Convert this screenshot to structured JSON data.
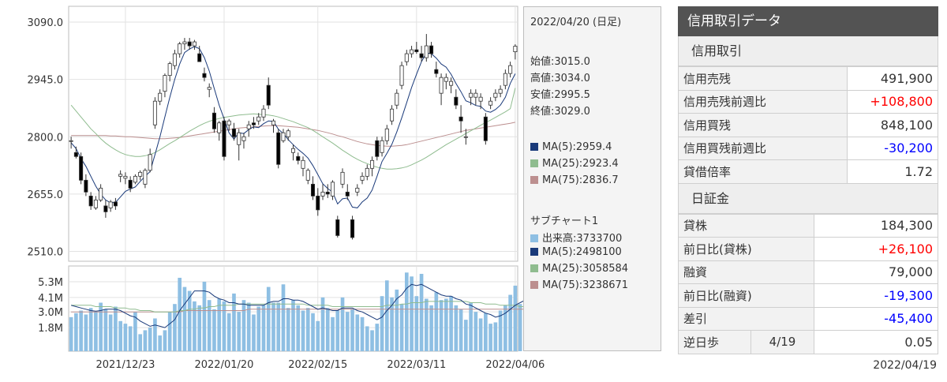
{
  "chart_data": {
    "type": "candlestick",
    "price": {
      "yticks": [
        3090.0,
        2945.0,
        2800.0,
        2655.0,
        2510.0
      ],
      "ylim": [
        2485,
        3130
      ],
      "candles": [
        [
          2790,
          2800,
          2770,
          2790
        ],
        [
          2760,
          2775,
          2745,
          2750
        ],
        [
          2750,
          2760,
          2680,
          2690
        ],
        [
          2690,
          2705,
          2650,
          2660
        ],
        [
          2650,
          2660,
          2615,
          2625
        ],
        [
          2620,
          2650,
          2615,
          2640
        ],
        [
          2640,
          2680,
          2635,
          2670
        ],
        [
          2625,
          2640,
          2595,
          2610
        ],
        [
          2620,
          2640,
          2610,
          2635
        ],
        [
          2635,
          2645,
          2615,
          2625
        ],
        [
          2700,
          2715,
          2685,
          2705
        ],
        [
          2695,
          2710,
          2680,
          2700
        ],
        [
          2690,
          2700,
          2660,
          2670
        ],
        [
          2685,
          2705,
          2680,
          2700
        ],
        [
          2700,
          2715,
          2690,
          2710
        ],
        [
          2680,
          2720,
          2670,
          2715
        ],
        [
          2715,
          2770,
          2710,
          2755
        ],
        [
          2830,
          2900,
          2820,
          2890
        ],
        [
          2890,
          2920,
          2880,
          2910
        ],
        [
          2915,
          2960,
          2900,
          2955
        ],
        [
          2955,
          2990,
          2940,
          2985
        ],
        [
          2980,
          3020,
          2970,
          3010
        ],
        [
          3010,
          3040,
          3000,
          3035
        ],
        [
          3035,
          3050,
          3020,
          3040
        ],
        [
          3040,
          3050,
          3020,
          3030
        ],
        [
          3030,
          3045,
          3020,
          3040
        ],
        [
          3010,
          3030,
          2990,
          2990
        ],
        [
          2960,
          2975,
          2940,
          2950
        ],
        [
          2920,
          2935,
          2900,
          2925
        ],
        [
          2860,
          2875,
          2810,
          2820
        ],
        [
          2810,
          2840,
          2790,
          2835
        ],
        [
          2840,
          2850,
          2740,
          2750
        ],
        [
          2830,
          2845,
          2815,
          2840
        ],
        [
          2820,
          2835,
          2790,
          2800
        ],
        [
          2780,
          2820,
          2740,
          2810
        ],
        [
          2790,
          2810,
          2770,
          2800
        ],
        [
          2820,
          2840,
          2800,
          2830
        ],
        [
          2835,
          2850,
          2820,
          2830
        ],
        [
          2840,
          2860,
          2830,
          2850
        ],
        [
          2850,
          2880,
          2840,
          2870
        ],
        [
          2930,
          2950,
          2870,
          2880
        ],
        [
          2830,
          2845,
          2810,
          2840
        ],
        [
          2810,
          2820,
          2720,
          2730
        ],
        [
          2790,
          2820,
          2785,
          2810
        ],
        [
          2800,
          2820,
          2790,
          2815
        ],
        [
          2760,
          2780,
          2740,
          2770
        ],
        [
          2750,
          2760,
          2730,
          2740
        ],
        [
          2720,
          2750,
          2700,
          2740
        ],
        [
          2690,
          2720,
          2680,
          2715
        ],
        [
          2680,
          2700,
          2640,
          2650
        ],
        [
          2650,
          2670,
          2600,
          2615
        ],
        [
          2650,
          2680,
          2640,
          2660
        ],
        [
          2660,
          2680,
          2645,
          2655
        ],
        [
          2650,
          2690,
          2640,
          2685
        ],
        [
          2590,
          2600,
          2545,
          2550
        ],
        [
          2680,
          2720,
          2670,
          2710
        ],
        [
          2660,
          2680,
          2640,
          2650
        ],
        [
          2590,
          2600,
          2540,
          2545
        ],
        [
          2660,
          2680,
          2650,
          2670
        ],
        [
          2690,
          2710,
          2680,
          2700
        ],
        [
          2700,
          2730,
          2690,
          2720
        ],
        [
          2720,
          2750,
          2700,
          2740
        ],
        [
          2790,
          2800,
          2740,
          2750
        ],
        [
          2760,
          2800,
          2750,
          2790
        ],
        [
          2790,
          2830,
          2780,
          2820
        ],
        [
          2840,
          2880,
          2830,
          2870
        ],
        [
          2880,
          2920,
          2870,
          2910
        ],
        [
          2930,
          2990,
          2920,
          2980
        ],
        [
          2990,
          3020,
          2980,
          3010
        ],
        [
          3010,
          3030,
          3000,
          3020
        ],
        [
          3020,
          3040,
          3010,
          3015
        ],
        [
          3010,
          3030,
          2990,
          3000
        ],
        [
          3000,
          3060,
          2990,
          3030
        ],
        [
          3030,
          3040,
          3000,
          3010
        ],
        [
          2970,
          2990,
          2950,
          2960
        ],
        [
          2910,
          2960,
          2880,
          2950
        ],
        [
          2940,
          2960,
          2920,
          2950
        ],
        [
          2930,
          2950,
          2910,
          2940
        ],
        [
          2900,
          2920,
          2870,
          2880
        ],
        [
          2850,
          2880,
          2810,
          2840
        ],
        [
          2800,
          2820,
          2780,
          2800
        ],
        [
          2900,
          2920,
          2880,
          2910
        ],
        [
          2900,
          2920,
          2880,
          2910
        ],
        [
          2890,
          2910,
          2870,
          2900
        ],
        [
          2850,
          2860,
          2780,
          2790
        ],
        [
          2880,
          2900,
          2870,
          2890
        ],
        [
          2900,
          2920,
          2890,
          2910
        ],
        [
          2910,
          2930,
          2900,
          2920
        ],
        [
          2930,
          2970,
          2920,
          2960
        ],
        [
          2960,
          2990,
          2950,
          2980
        ],
        [
          3015,
          3034,
          2995.5,
          3029
        ]
      ],
      "ma5": [
        2785,
        2770,
        2745,
        2725,
        2700,
        2675,
        2655,
        2640,
        2633,
        2634,
        2648,
        2662,
        2668,
        2673,
        2687,
        2700,
        2712,
        2755,
        2800,
        2850,
        2900,
        2945,
        2984,
        3013,
        3022,
        3028,
        3023,
        3000,
        2966,
        2922,
        2880,
        2845,
        2810,
        2794,
        2810,
        2808,
        2818,
        2825,
        2823,
        2833,
        2840,
        2839,
        2819,
        2808,
        2793,
        2780,
        2768,
        2758,
        2746,
        2727,
        2704,
        2681,
        2669,
        2660,
        2630,
        2643,
        2645,
        2622,
        2620,
        2635,
        2645,
        2665,
        2700,
        2737,
        2758,
        2781,
        2812,
        2848,
        2886,
        2925,
        2958,
        2990,
        3012,
        3010,
        2999,
        2984,
        2976,
        2958,
        2935,
        2914,
        2891,
        2886,
        2879,
        2877,
        2865,
        2862,
        2869,
        2880,
        2900,
        2935,
        2959.4
      ],
      "ma25": [
        2880,
        2865,
        2850,
        2835,
        2820,
        2808,
        2795,
        2784,
        2775,
        2767,
        2760,
        2755,
        2752,
        2750,
        2750,
        2752,
        2755,
        2760,
        2767,
        2775,
        2783,
        2790,
        2798,
        2806,
        2814,
        2821,
        2828,
        2834,
        2839,
        2843,
        2846,
        2849,
        2851,
        2853,
        2855,
        2856,
        2857,
        2858,
        2857,
        2856,
        2855,
        2853,
        2850,
        2846,
        2842,
        2838,
        2833,
        2828,
        2823,
        2816,
        2808,
        2800,
        2792,
        2784,
        2775,
        2766,
        2758,
        2750,
        2743,
        2737,
        2732,
        2727,
        2723,
        2720,
        2718,
        2718,
        2719,
        2721,
        2724,
        2729,
        2735,
        2741,
        2748,
        2756,
        2764,
        2772,
        2780,
        2787,
        2794,
        2801,
        2808,
        2815,
        2822,
        2829,
        2836,
        2842,
        2849,
        2856,
        2863,
        2871,
        2923.4
      ],
      "ma75": [
        2803,
        2803,
        2803,
        2803,
        2803,
        2803,
        2803,
        2803,
        2802,
        2802,
        2801,
        2800,
        2800,
        2799,
        2798,
        2797,
        2796,
        2795,
        2795,
        2795,
        2796,
        2797,
        2798,
        2800,
        2802,
        2804,
        2806,
        2808,
        2810,
        2812,
        2814,
        2816,
        2818,
        2820,
        2822,
        2823,
        2824,
        2825,
        2826,
        2827,
        2828,
        2828,
        2828,
        2827,
        2826,
        2825,
        2824,
        2822,
        2820,
        2818,
        2816,
        2813,
        2810,
        2807,
        2803,
        2800,
        2796,
        2792,
        2788,
        2785,
        2782,
        2780,
        2778,
        2777,
        2776,
        2776,
        2777,
        2778,
        2780,
        2783,
        2786,
        2789,
        2792,
        2795,
        2798,
        2801,
        2804,
        2807,
        2810,
        2813,
        2816,
        2818,
        2820,
        2822,
        2824,
        2826,
        2828,
        2830,
        2832,
        2834,
        2836.7
      ]
    },
    "volume": {
      "yticks": [
        "5.3M",
        "4.1M",
        "3.0M",
        "1.8M"
      ],
      "ylim": [
        0,
        6500000
      ],
      "bars": [
        2.6,
        2.9,
        3.1,
        2.8,
        3.3,
        3.0,
        3.7,
        3.2,
        2.8,
        3.4,
        2.3,
        2.1,
        1.9,
        3.0,
        1.3,
        1.6,
        1.8,
        2.5,
        1.2,
        1.6,
        3.0,
        3.6,
        5.6,
        4.9,
        4.6,
        3.8,
        3.5,
        5.3,
        3.9,
        3.2,
        4.0,
        3.8,
        2.9,
        4.4,
        3.0,
        3.9,
        3.7,
        2.8,
        3.4,
        3.5,
        4.9,
        3.7,
        3.7,
        5.1,
        3.3,
        3.9,
        3.5,
        3.1,
        3.3,
        2.9,
        2.3,
        4.1,
        3.3,
        2.6,
        3.1,
        4.1,
        3.0,
        3.2,
        2.8,
        2.6,
        1.9,
        1.6,
        2.1,
        4.2,
        5.4,
        4.1,
        4.7,
        3.6,
        6.0,
        5.7,
        4.2,
        5.9,
        4.0,
        3.5,
        4.5,
        3.9,
        4.0,
        4.2,
        3.5,
        3.2,
        2.4,
        3.7,
        3.0,
        2.5,
        2.9,
        2.1,
        2.2,
        3.1,
        3.5,
        4.3,
        5.0,
        3.6,
        3.4,
        5.4,
        3.7,
        2.0,
        2.4,
        2.8,
        1.8,
        2.4,
        3.7
      ],
      "ma5": [
        3.5,
        3.4,
        3.3,
        3.2,
        3.1,
        3.05,
        3.1,
        3.2,
        3.2,
        3.2,
        3.1,
        2.9,
        2.7,
        2.6,
        2.3,
        2.1,
        1.9,
        2.0,
        1.9,
        1.8,
        2.1,
        2.4,
        3.1,
        3.6,
        4.1,
        4.6,
        4.6,
        4.6,
        4.5,
        4.2,
        4.0,
        3.9,
        3.7,
        3.7,
        3.6,
        3.6,
        3.5,
        3.5,
        3.5,
        3.5,
        3.7,
        3.8,
        3.8,
        4.0,
        4.0,
        3.9,
        3.9,
        3.8,
        3.6,
        3.4,
        3.2,
        3.3,
        3.2,
        3.1,
        3.1,
        3.3,
        3.3,
        3.3,
        3.1,
        3.0,
        2.8,
        2.6,
        2.4,
        2.6,
        3.1,
        3.5,
        4.0,
        4.3,
        4.8,
        5.1,
        5.0,
        5.1,
        4.9,
        4.7,
        4.5,
        4.3,
        4.2,
        4.2,
        4.0,
        3.9,
        3.6,
        3.5,
        3.3,
        3.1,
        2.9,
        2.8,
        2.6,
        2.7,
        2.9,
        3.2,
        3.5,
        3.7,
        3.9,
        4.1,
        4.1,
        3.8,
        3.5,
        3.2,
        2.6,
        2.3,
        2.5
      ],
      "ma25": [
        3.5,
        3.5,
        3.5,
        3.5,
        3.5,
        3.4,
        3.4,
        3.4,
        3.4,
        3.3,
        3.3,
        3.3,
        3.2,
        3.2,
        3.1,
        3.1,
        3.1,
        3.0,
        3.0,
        3.0,
        3.0,
        3.0,
        3.1,
        3.1,
        3.2,
        3.2,
        3.3,
        3.3,
        3.4,
        3.4,
        3.5,
        3.5,
        3.5,
        3.5,
        3.6,
        3.6,
        3.6,
        3.6,
        3.6,
        3.6,
        3.6,
        3.6,
        3.6,
        3.6,
        3.6,
        3.6,
        3.6,
        3.6,
        3.5,
        3.5,
        3.5,
        3.5,
        3.5,
        3.4,
        3.4,
        3.4,
        3.4,
        3.4,
        3.4,
        3.4,
        3.4,
        3.4,
        3.4,
        3.4,
        3.5,
        3.5,
        3.5,
        3.6,
        3.6,
        3.7,
        3.7,
        3.7,
        3.8,
        3.8,
        3.8,
        3.8,
        3.8,
        3.8,
        3.8,
        3.8,
        3.8,
        3.7,
        3.7,
        3.7,
        3.6,
        3.6,
        3.6,
        3.5,
        3.5,
        3.5,
        3.5,
        3.4,
        3.4,
        3.4,
        3.3,
        3.3,
        3.2,
        3.2,
        3.1,
        3.1,
        3.06
      ],
      "ma75": [
        3.0,
        3.0,
        3.0,
        3.0,
        3.0,
        3.0,
        3.0,
        3.0,
        3.0,
        3.0,
        3.0,
        3.0,
        3.0,
        3.0,
        3.0,
        3.0,
        3.0,
        3.0,
        3.0,
        3.0,
        3.0,
        3.0,
        3.0,
        3.1,
        3.1,
        3.1,
        3.1,
        3.1,
        3.1,
        3.1,
        3.1,
        3.1,
        3.1,
        3.1,
        3.1,
        3.1,
        3.2,
        3.2,
        3.2,
        3.2,
        3.2,
        3.2,
        3.2,
        3.2,
        3.2,
        3.2,
        3.2,
        3.2,
        3.2,
        3.2,
        3.2,
        3.2,
        3.2,
        3.2,
        3.2,
        3.2,
        3.2,
        3.2,
        3.2,
        3.2,
        3.2,
        3.2,
        3.2,
        3.2,
        3.2,
        3.2,
        3.2,
        3.2,
        3.2,
        3.2,
        3.2,
        3.2,
        3.2,
        3.2,
        3.2,
        3.2,
        3.2,
        3.2,
        3.2,
        3.2,
        3.2,
        3.2,
        3.2,
        3.2,
        3.2,
        3.2,
        3.2,
        3.2,
        3.2,
        3.2,
        3.2,
        3.2,
        3.2,
        3.2,
        3.2,
        3.2,
        3.2,
        3.2,
        3.2,
        3.2,
        3.24
      ]
    },
    "xlabels": [
      "2021/12/23",
      "2022/01/20",
      "2022/02/15",
      "2022/03/11",
      "2022/04/06"
    ],
    "xlabel_index": [
      11,
      31,
      50,
      70,
      90
    ],
    "colors": {
      "up_body": "#ffffff",
      "down_body": "#000000",
      "candle_line": "#333333",
      "ma5": "#1a3a7a",
      "ma25": "#8fbc8f",
      "ma75": "#bc8f8f",
      "volume_bar": "#8ebfe3",
      "grid": "#e2e2e2"
    }
  },
  "info": {
    "date": "2022/04/20 (日足)",
    "open": "始値:3015.0",
    "high": "高値:3034.0",
    "low": "安値:2995.5",
    "close": "終値:3029.0",
    "ma5": "MA(5):2959.4",
    "ma25": "MA(25):2923.4",
    "ma75": "MA(75):2836.7",
    "sub_title": "サブチャート1",
    "volume": "出来高:3733700",
    "vol_ma5": "MA(5):2498100",
    "vol_ma25": "MA(25):3058584",
    "vol_ma75": "MA(75):3238671",
    "colors": {
      "ma5": "#1a3a7a",
      "ma25": "#8fbc8f",
      "ma75": "#bc8f8f",
      "volume": "#8ebfe3"
    }
  },
  "credit": {
    "title": "信用取引データ",
    "section1": "信用取引",
    "rows1": [
      {
        "label": "信用売残",
        "value": "491,900",
        "tone": ""
      },
      {
        "label": "信用売残前週比",
        "value": "+108,800",
        "tone": "pos"
      },
      {
        "label": "信用買残",
        "value": "848,100",
        "tone": ""
      },
      {
        "label": "信用買残前週比",
        "value": "-30,200",
        "tone": "neg"
      },
      {
        "label": "貸借倍率",
        "value": "1.72",
        "tone": ""
      }
    ],
    "section2": "日証金",
    "rows2": [
      {
        "label": "貸株",
        "value": "184,300",
        "tone": ""
      },
      {
        "label": "前日比(貸株)",
        "value": "+26,100",
        "tone": "pos"
      },
      {
        "label": "融資",
        "value": "79,000",
        "tone": ""
      },
      {
        "label": "前日比(融資)",
        "value": "-19,300",
        "tone": "neg"
      },
      {
        "label": "差引",
        "value": "-45,400",
        "tone": "neg"
      }
    ],
    "last": {
      "label": "逆日歩",
      "date": "4/19",
      "value": "0.05"
    },
    "as_of": "2022/04/19"
  }
}
